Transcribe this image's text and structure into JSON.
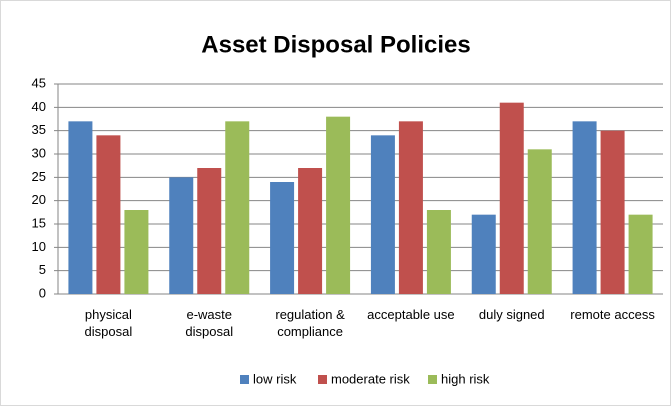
{
  "chart_data": {
    "type": "bar",
    "title": "Asset Disposal Policies",
    "categories": [
      "physical disposal",
      "e-waste disposal",
      "regulation & compliance",
      "acceptable use",
      "duly signed",
      "remote access"
    ],
    "series": [
      {
        "name": "low risk",
        "color": "#4f81bd",
        "values": [
          37,
          25,
          24,
          34,
          17,
          37
        ]
      },
      {
        "name": "moderate risk",
        "color": "#c0504d",
        "values": [
          34,
          27,
          27,
          37,
          41,
          35
        ]
      },
      {
        "name": "high risk",
        "color": "#9bbb59",
        "values": [
          18,
          37,
          38,
          18,
          31,
          17
        ]
      }
    ],
    "ylim": [
      0,
      45
    ],
    "yticks": [
      0,
      5,
      10,
      15,
      20,
      25,
      30,
      35,
      40,
      45
    ],
    "grid": true,
    "legend": "bottom"
  }
}
